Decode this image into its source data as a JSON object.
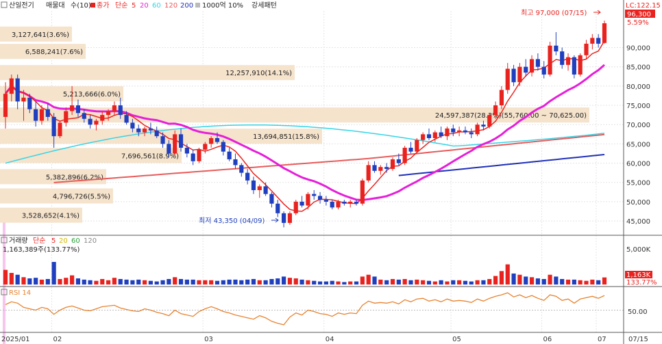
{
  "legend": {
    "price": [
      "산일전기",
      "매물대",
      "수(10)",
      "종가",
      "단순",
      "5",
      "20",
      "60",
      "120",
      "200",
      "1000억 10%",
      "강세패턴"
    ],
    "volume": [
      "거래량",
      "단순",
      "5",
      "20",
      "60",
      "120"
    ],
    "rsi": "RSI 14"
  },
  "colors": {
    "up": "#e8231f",
    "down": "#1f3fbf",
    "ma5": "#e8231f",
    "ma20": "#e61ed9",
    "ma60": "#35d4e6",
    "ma120": "#e85a5a",
    "ma200": "#1f2fb8",
    "rsi": "#e8822e",
    "profile": "#f5e3cc"
  },
  "chart_data": {
    "type": "candlestick",
    "price_axis": {
      "ylim": [
        42000,
        99500
      ],
      "ticks": [
        "45,000",
        "50,000",
        "55,000",
        "60,000",
        "65,000",
        "70,000",
        "75,000",
        "80,000",
        "85,000",
        "90,000"
      ],
      "tick_values": [
        45000,
        50000,
        55000,
        60000,
        65000,
        70000,
        75000,
        80000,
        85000,
        90000
      ]
    },
    "x_labels": [
      "2025/01",
      "02",
      "03",
      "04",
      "05",
      "06",
      "07",
      "07/15"
    ],
    "last_price": "96,300",
    "last_change": "5.59%",
    "lc_label": "LC:122.15",
    "annotations": {
      "high": "최고 97,000 (07/15)",
      "low": "최저 43,350 (04/09)",
      "strong_range": "24,597,387(28.3%)(55,760.00 ~ 70,625.00)"
    },
    "volume_profile": [
      {
        "label": "3,127,641(3.6%)",
        "price": 93500
      },
      {
        "label": "6,588,241(7.6%)",
        "price": 89000
      },
      {
        "label": "12,257,910(14.1%)",
        "price": 83500
      },
      {
        "label": "5,213,666(6.0%)",
        "price": 78000
      },
      {
        "label": "24,597,387(28.3%)(55,760.00 ~ 70,625.00)",
        "price": 72500
      },
      {
        "label": "13,694,851(15.8%)",
        "price": 67000
      },
      {
        "label": "7,696,561(8.9%)",
        "price": 62000
      },
      {
        "label": "5,382,896(6.2%)",
        "price": 56500
      },
      {
        "label": "4,796,726(5.5%)",
        "price": 51500
      },
      {
        "label": "3,528,652(4.1%)",
        "price": 46500
      }
    ],
    "candles": [
      [
        72000,
        81000,
        69000,
        78000
      ],
      [
        78000,
        83000,
        76000,
        82000
      ],
      [
        82000,
        83000,
        74000,
        76000
      ],
      [
        76000,
        79000,
        71000,
        77000
      ],
      [
        77000,
        78000,
        73000,
        74000
      ],
      [
        74000,
        76000,
        69500,
        71000
      ],
      [
        71000,
        75000,
        70000,
        74000
      ],
      [
        74000,
        75500,
        71000,
        72000
      ],
      [
        72000,
        73000,
        64000,
        67000
      ],
      [
        67000,
        71000,
        66500,
        70500
      ],
      [
        70500,
        74500,
        69500,
        73500
      ],
      [
        73500,
        80000,
        72500,
        75000
      ],
      [
        75000,
        76500,
        72000,
        73000
      ],
      [
        73000,
        74000,
        70500,
        71500
      ],
      [
        71500,
        72500,
        69000,
        70000
      ],
      [
        70000,
        71500,
        68500,
        71000
      ],
      [
        71000,
        73500,
        70000,
        72500
      ],
      [
        72500,
        74000,
        71000,
        73500
      ],
      [
        73500,
        76000,
        72500,
        75000
      ],
      [
        75000,
        77000,
        71500,
        72500
      ],
      [
        72500,
        73500,
        70000,
        70500
      ],
      [
        70500,
        71500,
        68000,
        69000
      ],
      [
        69000,
        70000,
        67000,
        68000
      ],
      [
        68000,
        69500,
        67000,
        69000
      ],
      [
        69000,
        70500,
        67500,
        68500
      ],
      [
        68500,
        69500,
        66500,
        67000
      ],
      [
        67000,
        68000,
        64000,
        65000
      ],
      [
        65000,
        66000,
        61500,
        62500
      ],
      [
        62500,
        68500,
        62000,
        67500
      ],
      [
        67500,
        69000,
        63000,
        64000
      ],
      [
        64000,
        65000,
        61500,
        62500
      ],
      [
        62500,
        63500,
        59500,
        60500
      ],
      [
        60500,
        64000,
        60000,
        63500
      ],
      [
        63500,
        65500,
        62500,
        65000
      ],
      [
        65000,
        67000,
        64000,
        66500
      ],
      [
        66500,
        68000,
        65000,
        65500
      ],
      [
        65500,
        66000,
        62000,
        63000
      ],
      [
        63000,
        64000,
        60500,
        61000
      ],
      [
        61000,
        62500,
        58500,
        59500
      ],
      [
        59500,
        60000,
        56500,
        57500
      ],
      [
        57500,
        58500,
        54500,
        55500
      ],
      [
        55500,
        56500,
        52000,
        53000
      ],
      [
        53000,
        54500,
        51000,
        54000
      ],
      [
        54000,
        55000,
        51500,
        52000
      ],
      [
        52000,
        52500,
        48500,
        49500
      ],
      [
        49500,
        50500,
        46000,
        47000
      ],
      [
        47000,
        47500,
        43350,
        44500
      ],
      [
        44500,
        47500,
        44000,
        47000
      ],
      [
        47000,
        50500,
        46500,
        50000
      ],
      [
        50000,
        51500,
        48500,
        49000
      ],
      [
        49000,
        52500,
        48000,
        52000
      ],
      [
        52000,
        53000,
        50500,
        51500
      ],
      [
        51500,
        52500,
        49500,
        50500
      ],
      [
        50500,
        51500,
        49000,
        50000
      ],
      [
        50000,
        50500,
        48000,
        48500
      ],
      [
        48500,
        50500,
        48000,
        50000
      ],
      [
        50000,
        50500,
        49000,
        49500
      ],
      [
        49500,
        50500,
        48500,
        50000
      ],
      [
        50000,
        50500,
        49000,
        49500
      ],
      [
        49500,
        56000,
        49000,
        55500
      ],
      [
        55500,
        60500,
        55000,
        59500
      ],
      [
        59500,
        60500,
        57500,
        58000
      ],
      [
        58000,
        59500,
        57000,
        59000
      ],
      [
        59000,
        60000,
        57500,
        58500
      ],
      [
        58500,
        61500,
        58000,
        61000
      ],
      [
        61000,
        62500,
        59500,
        60000
      ],
      [
        60000,
        64500,
        59500,
        64000
      ],
      [
        64000,
        65500,
        62500,
        63000
      ],
      [
        63000,
        66500,
        62500,
        66000
      ],
      [
        66000,
        68000,
        65000,
        67500
      ],
      [
        67500,
        69000,
        66000,
        66500
      ],
      [
        66500,
        68500,
        65500,
        68000
      ],
      [
        68000,
        69500,
        66500,
        67000
      ],
      [
        67000,
        69500,
        66000,
        69000
      ],
      [
        69000,
        70000,
        67000,
        68000
      ],
      [
        68000,
        69500,
        67000,
        68500
      ],
      [
        68500,
        69500,
        67500,
        68000
      ],
      [
        68000,
        69000,
        66500,
        67500
      ],
      [
        67500,
        70500,
        67000,
        70000
      ],
      [
        70000,
        71000,
        68500,
        69500
      ],
      [
        69500,
        73000,
        69000,
        72500
      ],
      [
        72500,
        76000,
        71500,
        75000
      ],
      [
        75000,
        80000,
        74000,
        79000
      ],
      [
        79000,
        86000,
        78000,
        84500
      ],
      [
        84500,
        85500,
        80000,
        81000
      ],
      [
        81000,
        86000,
        80000,
        85000
      ],
      [
        85000,
        87000,
        82500,
        83500
      ],
      [
        83500,
        88000,
        82500,
        87000
      ],
      [
        87000,
        88500,
        84000,
        85000
      ],
      [
        85000,
        86500,
        82000,
        83000
      ],
      [
        83000,
        91500,
        82500,
        90500
      ],
      [
        90500,
        94000,
        88000,
        89000
      ],
      [
        89000,
        90000,
        84500,
        85500
      ],
      [
        85500,
        88500,
        84000,
        87500
      ],
      [
        87500,
        88000,
        82000,
        83000
      ],
      [
        83000,
        88500,
        82500,
        88000
      ],
      [
        88000,
        92000,
        87000,
        91000
      ],
      [
        91000,
        93500,
        89500,
        92500
      ],
      [
        92500,
        93500,
        90000,
        91000
      ],
      [
        91200,
        97000,
        91000,
        96300
      ]
    ],
    "volume_ylim": [
      0,
      6500
    ],
    "volume_tick": "5,000K",
    "volume_last": "1,163K",
    "volume_pct": "133.77%",
    "volume_header": "1,163,389주(133.77%)",
    "volume": [
      2400,
      1900,
      1600,
      1200,
      1000,
      1100,
      800,
      900,
      3700,
      900,
      1100,
      1500,
      1000,
      800,
      700,
      600,
      900,
      700,
      1100,
      900,
      800,
      700,
      800,
      700,
      600,
      500,
      700,
      900,
      1200,
      900,
      800,
      800,
      700,
      700,
      700,
      600,
      700,
      800,
      800,
      700,
      800,
      900,
      700,
      700,
      900,
      1000,
      1300,
      1100,
      1000,
      800,
      700,
      600,
      500,
      500,
      600,
      500,
      400,
      500,
      500,
      1300,
      1600,
      1300,
      800,
      700,
      900,
      800,
      900,
      700,
      800,
      700,
      600,
      500,
      700,
      500,
      700,
      700,
      600,
      500,
      700,
      700,
      900,
      1400,
      2200,
      3300,
      1800,
      1600,
      1300,
      1200,
      1000,
      900,
      1600,
      1300,
      900,
      800,
      800,
      700,
      600,
      800,
      700,
      1163
    ],
    "rsi_ylim": [
      20,
      80
    ],
    "rsi_tick": "50.00",
    "rsi": [
      58,
      62,
      60,
      54,
      52,
      50,
      54,
      52,
      44,
      50,
      54,
      56,
      53,
      50,
      49,
      52,
      55,
      56,
      57,
      53,
      51,
      49,
      48,
      52,
      50,
      47,
      45,
      42,
      50,
      45,
      43,
      41,
      48,
      52,
      55,
      52,
      48,
      46,
      43,
      41,
      39,
      37,
      42,
      39,
      34,
      31,
      29,
      40,
      46,
      43,
      50,
      48,
      45,
      44,
      41,
      46,
      44,
      46,
      45,
      57,
      63,
      60,
      61,
      60,
      62,
      59,
      65,
      62,
      66,
      67,
      63,
      65,
      62,
      66,
      63,
      64,
      63,
      61,
      66,
      63,
      67,
      70,
      72,
      75,
      69,
      72,
      68,
      71,
      67,
      64,
      72,
      70,
      64,
      66,
      60,
      66,
      68,
      70,
      67,
      71
    ]
  }
}
